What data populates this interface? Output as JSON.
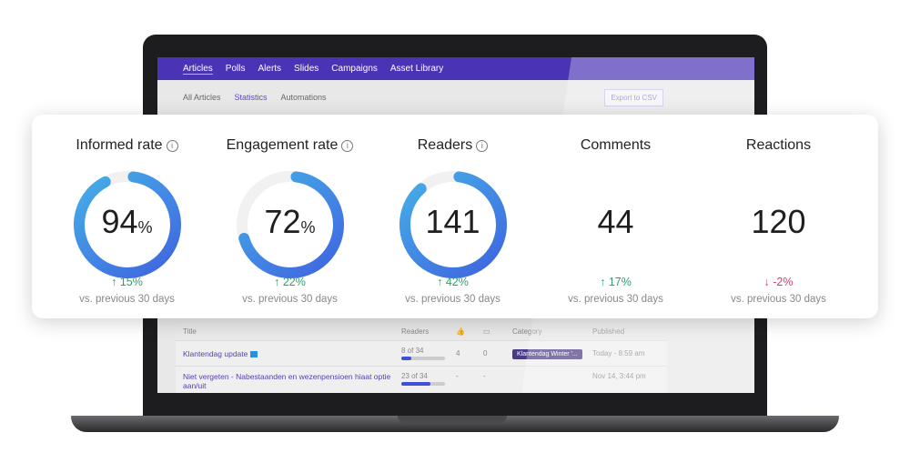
{
  "app": {
    "nav": [
      "Articles",
      "Polls",
      "Alerts",
      "Slides",
      "Campaigns",
      "Asset Library"
    ],
    "subnav": [
      "All Articles",
      "Statistics",
      "Automations"
    ],
    "export_label": "Export to CSV",
    "table": {
      "headers": {
        "title": "Title",
        "readers": "Readers",
        "likes_icon": "thumbs-up-icon",
        "comments_icon": "comment-icon",
        "category": "Category",
        "published": "Published"
      },
      "rows": [
        {
          "title": "Klantendag update",
          "readers": "8 of 34",
          "readers_fraction": 0.235,
          "likes": "4",
          "comments": "0",
          "category": "Klantendag Winter '...",
          "published": "Today - 8:59 am"
        },
        {
          "title": "Niet vergeten - Nabestaanden en wezenpensioen hiaat optie aan/uit",
          "readers": "23 of 34",
          "readers_fraction": 0.676,
          "likes": "-",
          "comments": "-",
          "category": "",
          "published": "Nov 14, 3:44 pm"
        }
      ]
    }
  },
  "stats": [
    {
      "title": "Informed rate",
      "info": true,
      "value": "94",
      "unit": "%",
      "ring_fraction": 0.94,
      "change": "15%",
      "direction": "up",
      "sub": "vs. previous 30 days"
    },
    {
      "title": "Engagement rate",
      "info": true,
      "value": "72",
      "unit": "%",
      "ring_fraction": 0.72,
      "change": "22%",
      "direction": "up",
      "sub": "vs. previous 30 days"
    },
    {
      "title": "Readers",
      "info": true,
      "value": "141",
      "unit": "",
      "ring_fraction": 0.9,
      "change": "42%",
      "direction": "up",
      "sub": "vs. previous 30 days"
    },
    {
      "title": "Comments",
      "info": false,
      "value": "44",
      "unit": "",
      "change": "17%",
      "direction": "up",
      "sub": "vs. previous 30 days"
    },
    {
      "title": "Reactions",
      "info": false,
      "value": "120",
      "unit": "",
      "change": "-2%",
      "direction": "down",
      "sub": "vs. previous 30 days"
    }
  ],
  "colors": {
    "nav": "#4b33b5",
    "ring_start": "#3f63e0",
    "ring_end": "#45b0e8",
    "up": "#2f9e6a",
    "down": "#d23c6a"
  }
}
